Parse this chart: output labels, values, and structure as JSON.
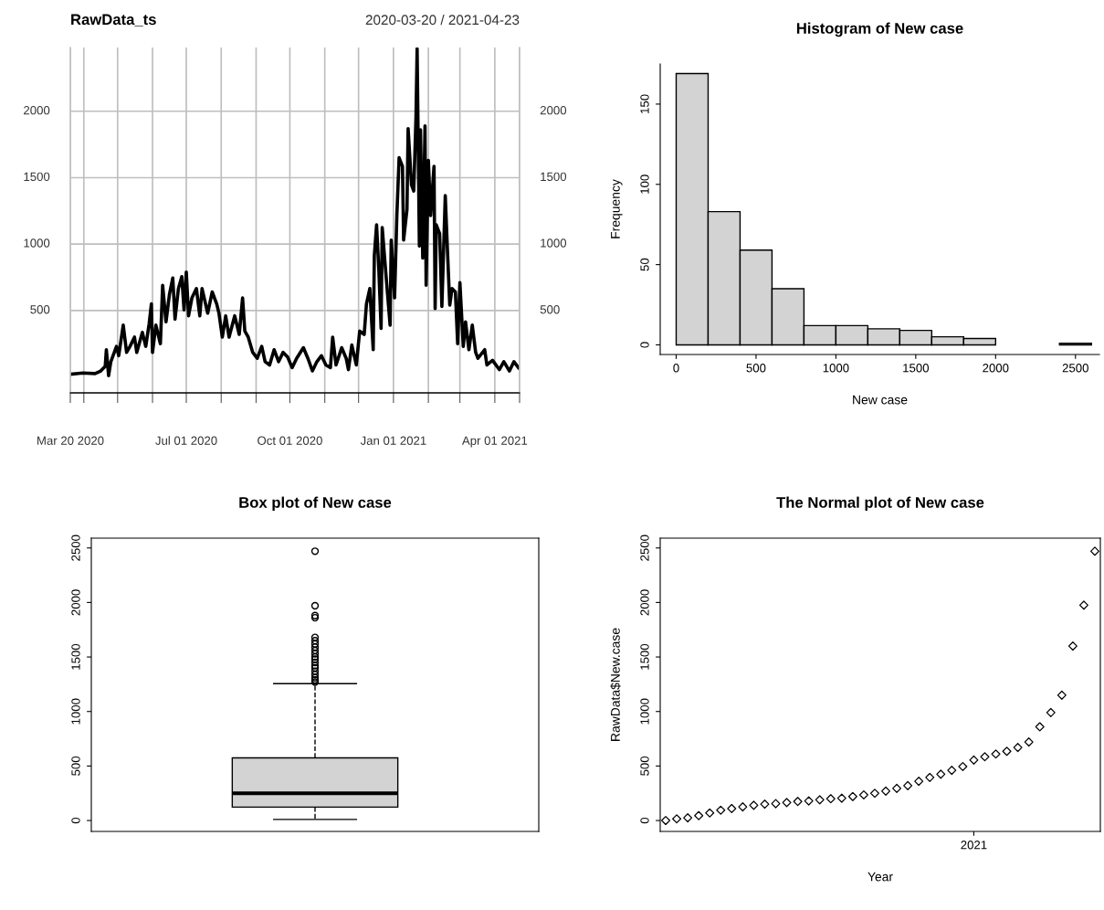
{
  "chart_data": [
    {
      "type": "line",
      "title": "RawData_ts",
      "subtitle": "2020-03-20 / 2021-04-23",
      "x": [
        "2020-03-20",
        "2020-03-31",
        "2020-04-11",
        "2020-04-16",
        "2020-04-20",
        "2020-04-21",
        "2020-04-23",
        "2020-04-25",
        "2020-04-30",
        "2020-05-02",
        "2020-05-06",
        "2020-05-09",
        "2020-05-12",
        "2020-05-16",
        "2020-05-18",
        "2020-05-23",
        "2020-05-26",
        "2020-05-29",
        "2020-05-31",
        "2020-06-01",
        "2020-06-04",
        "2020-06-08",
        "2020-06-10",
        "2020-06-13",
        "2020-06-16",
        "2020-06-19",
        "2020-06-21",
        "2020-06-24",
        "2020-06-27",
        "2020-06-29",
        "2020-07-01",
        "2020-07-03",
        "2020-07-06",
        "2020-07-10",
        "2020-07-13",
        "2020-07-15",
        "2020-07-20",
        "2020-07-24",
        "2020-07-28",
        "2020-07-30",
        "2020-08-02",
        "2020-08-05",
        "2020-08-08",
        "2020-08-13",
        "2020-08-17",
        "2020-08-20",
        "2020-08-22",
        "2020-08-25",
        "2020-08-29",
        "2020-09-02",
        "2020-09-06",
        "2020-09-09",
        "2020-09-13",
        "2020-09-17",
        "2020-09-21",
        "2020-09-25",
        "2020-09-29",
        "2020-10-03",
        "2020-10-07",
        "2020-10-13",
        "2020-10-17",
        "2020-10-21",
        "2020-10-25",
        "2020-10-29",
        "2020-11-02",
        "2020-11-06",
        "2020-11-08",
        "2020-11-11",
        "2020-11-16",
        "2020-11-20",
        "2020-11-22",
        "2020-11-25",
        "2020-11-29",
        "2020-12-02",
        "2020-12-06",
        "2020-12-08",
        "2020-12-11",
        "2020-12-14",
        "2020-12-15",
        "2020-12-17",
        "2020-12-19",
        "2020-12-21",
        "2020-12-22",
        "2020-12-25",
        "2020-12-29",
        "2020-12-30",
        "2021-01-02",
        "2021-01-04",
        "2021-01-06",
        "2021-01-09",
        "2021-01-10",
        "2021-01-13",
        "2021-01-14",
        "2021-01-17",
        "2021-01-19",
        "2021-01-21",
        "2021-01-22",
        "2021-01-24",
        "2021-01-25",
        "2021-01-27",
        "2021-01-29",
        "2021-01-30",
        "2021-02-01",
        "2021-02-03",
        "2021-02-06",
        "2021-02-07",
        "2021-02-08",
        "2021-02-11",
        "2021-02-13",
        "2021-02-16",
        "2021-02-18",
        "2021-02-20",
        "2021-02-22",
        "2021-02-25",
        "2021-02-27",
        "2021-03-01",
        "2021-03-04",
        "2021-03-06",
        "2021-03-09",
        "2021-03-12",
        "2021-03-15",
        "2021-03-17",
        "2021-03-23",
        "2021-03-25",
        "2021-03-30",
        "2021-04-05",
        "2021-04-09",
        "2021-04-14",
        "2021-04-18",
        "2021-04-22"
      ],
      "series": [
        {
          "color": "#000000",
          "values": [
            20,
            30,
            25,
            45,
            80,
            205,
            10,
            115,
            230,
            160,
            390,
            185,
            230,
            300,
            185,
            335,
            230,
            400,
            550,
            185,
            390,
            250,
            690,
            415,
            620,
            745,
            435,
            665,
            755,
            505,
            790,
            460,
            595,
            665,
            460,
            665,
            480,
            640,
            550,
            480,
            300,
            460,
            300,
            460,
            320,
            595,
            345,
            300,
            185,
            140,
            230,
            115,
            90,
            205,
            115,
            185,
            150,
            70,
            140,
            220,
            140,
            45,
            115,
            160,
            90,
            70,
            300,
            90,
            220,
            140,
            55,
            240,
            90,
            345,
            320,
            550,
            665,
            205,
            915,
            1145,
            805,
            365,
            1125,
            805,
            390,
            1030,
            595,
            1215,
            1650,
            1585,
            1030,
            1260,
            1870,
            1445,
            1400,
            1960,
            2470,
            985,
            1860,
            895,
            1890,
            690,
            1630,
            1215,
            1585,
            515,
            1145,
            1080,
            530,
            1365,
            940,
            540,
            665,
            640,
            250,
            710,
            230,
            415,
            205,
            390,
            185,
            140,
            205,
            90,
            125,
            55,
            115,
            45,
            115,
            70
          ]
        }
      ],
      "xlim": [
        "2020-03-20",
        "2021-04-23"
      ],
      "xticks": [
        {
          "value": "2020-03-20",
          "label": "Mar 20 2020"
        },
        {
          "value": "2020-04-01",
          "label": null
        },
        {
          "value": "2020-05-01",
          "label": null
        },
        {
          "value": "2020-06-01",
          "label": null
        },
        {
          "value": "2020-07-01",
          "label": "Jul 01 2020"
        },
        {
          "value": "2020-08-01",
          "label": null
        },
        {
          "value": "2020-09-01",
          "label": null
        },
        {
          "value": "2020-10-01",
          "label": "Oct 01 2020"
        },
        {
          "value": "2020-11-01",
          "label": null
        },
        {
          "value": "2020-12-01",
          "label": null
        },
        {
          "value": "2021-01-01",
          "label": "Jan 01 2021"
        },
        {
          "value": "2021-02-01",
          "label": null
        },
        {
          "value": "2021-03-01",
          "label": null
        },
        {
          "value": "2021-04-01",
          "label": "Apr 01 2021"
        },
        {
          "value": "2021-04-23",
          "label": null
        }
      ],
      "ylim": [
        -120,
        2480
      ],
      "yticks": [
        500,
        1000,
        1500,
        2000
      ],
      "y2lim": [
        -120,
        2480
      ],
      "y2ticks": [
        500,
        1000,
        1500,
        2000
      ],
      "grid": true,
      "marker": "none",
      "line_style": "solid"
    },
    {
      "type": "histogram",
      "title": "Histogram of New case",
      "xlabel": "New case",
      "ylabel": "Frequency",
      "bins": [
        0,
        200,
        400,
        600,
        800,
        1000,
        1200,
        1400,
        1600,
        1800,
        2000,
        2200,
        2400,
        2600
      ],
      "values": [
        169,
        83,
        59,
        35,
        12,
        12,
        10,
        9,
        5,
        4,
        0,
        0,
        1
      ],
      "color": "#d3d3d3",
      "xlim": [
        -100,
        2650
      ],
      "xticks": [
        0,
        500,
        1000,
        1500,
        2000,
        2500
      ],
      "ylim": [
        -6,
        175
      ],
      "yticks": [
        0,
        50,
        100,
        150
      ]
    },
    {
      "type": "box",
      "title": "Box plot of New case",
      "categories": [
        null
      ],
      "color": "#d3d3d3",
      "boxes": [
        {
          "low": 10,
          "q1": 123,
          "median": 250,
          "q3": 575,
          "high": 1255,
          "outliers": [
            1270,
            1290,
            1310,
            1340,
            1370,
            1400,
            1420,
            1450,
            1480,
            1500,
            1530,
            1560,
            1590,
            1620,
            1650,
            1680,
            1860,
            1880,
            1970,
            2470
          ]
        }
      ],
      "ylim": [
        -100,
        2590
      ],
      "yticks": [
        0,
        500,
        1000,
        1500,
        2000,
        2500
      ],
      "tick_labels": "y"
    },
    {
      "type": "scatter",
      "title": "The Normal plot of New case",
      "xlabel": "Year",
      "ylabel": "RawData$New.case",
      "color": "#000000",
      "marker": "diamond",
      "categories": [
        null,
        null,
        null,
        null,
        null,
        null,
        null,
        null,
        null,
        null,
        null,
        null,
        null,
        null,
        null,
        null,
        null,
        null,
        null,
        null,
        null,
        null,
        null,
        null,
        null,
        null,
        null,
        null,
        "2021",
        null,
        null,
        null,
        null,
        null,
        null,
        null,
        null,
        null,
        null,
        null
      ],
      "values": [
        0,
        15,
        25,
        45,
        70,
        95,
        110,
        125,
        140,
        150,
        155,
        165,
        175,
        180,
        190,
        200,
        205,
        220,
        235,
        250,
        270,
        295,
        320,
        360,
        395,
        425,
        460,
        495,
        555,
        585,
        610,
        635,
        670,
        720,
        860,
        990,
        1150,
        1600,
        1975,
        2470
      ],
      "ylim": [
        -100,
        2590
      ],
      "yticks": [
        0,
        500,
        1000,
        1500,
        2000,
        2500
      ]
    }
  ]
}
